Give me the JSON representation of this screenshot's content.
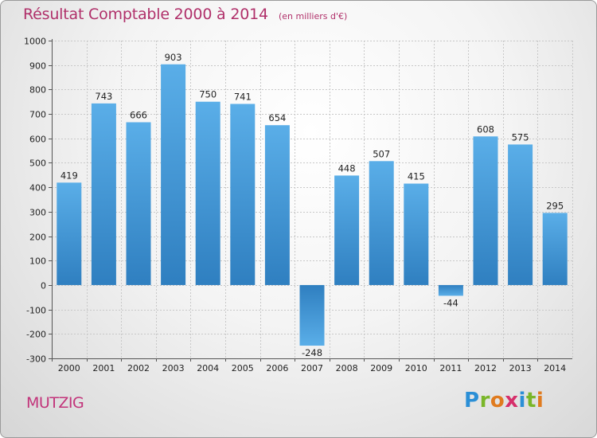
{
  "title": "Résultat Comptable 2000 à 2014",
  "subtitle": "(en milliers d'€)",
  "location": "MUTZIG",
  "logo": {
    "text": "Proxiti",
    "letter_colors": [
      "#2b8fd6",
      "#7ab629",
      "#e07b1f",
      "#d62f6b",
      "#2b8fd6",
      "#7ab629",
      "#e07b1f"
    ]
  },
  "colors": {
    "bar_top": "#5aaee8",
    "bar_bottom": "#2f7fc0",
    "title": "#b0306a",
    "location": "#c2337a"
  },
  "chart_data": {
    "type": "bar",
    "categories": [
      "2000",
      "2001",
      "2002",
      "2003",
      "2004",
      "2005",
      "2006",
      "2007",
      "2008",
      "2009",
      "2010",
      "2011",
      "2012",
      "2013",
      "2014"
    ],
    "values": [
      419,
      743,
      666,
      903,
      750,
      741,
      654,
      -248,
      448,
      507,
      415,
      -44,
      608,
      575,
      295
    ],
    "value_labels": [
      "419",
      "743",
      "666",
      "903",
      "750",
      "741",
      "654",
      "-248",
      "448",
      "507",
      "415",
      "-44",
      "608",
      "575",
      "295"
    ],
    "y_ticks": [
      1000,
      900,
      800,
      700,
      600,
      500,
      400,
      300,
      200,
      100,
      0,
      -100,
      -200,
      -300
    ],
    "y_tick_labels": [
      "1000",
      "900",
      "800",
      "700",
      "600",
      "500",
      "400",
      "300",
      "200",
      "100",
      "0",
      "-100",
      "-200",
      "-300"
    ],
    "ylim": [
      -300,
      1000
    ],
    "grid": true,
    "xlabel": "",
    "ylabel": ""
  }
}
